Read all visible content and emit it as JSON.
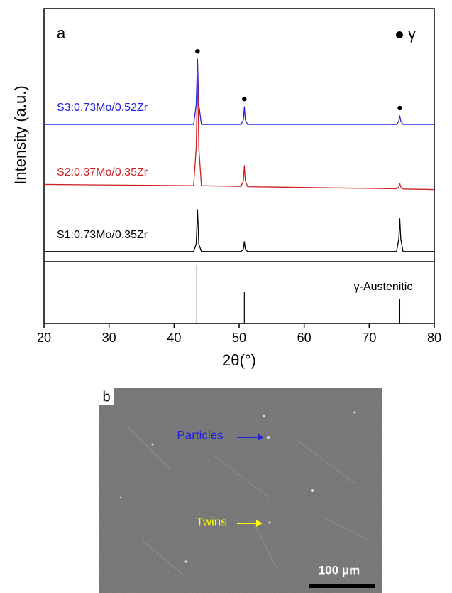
{
  "chart_data": {
    "type": "line",
    "panel_label": "a",
    "y_axis_label": "Intensity (a.u.)",
    "x_axis_label": "2θ(°)",
    "x": [
      20,
      43.0,
      43.4,
      43.6,
      43.8,
      44.2,
      50.3,
      50.65,
      50.8,
      50.95,
      51.3,
      74.2,
      74.55,
      74.7,
      74.85,
      75.2,
      80
    ],
    "xlim": [
      20,
      80
    ],
    "xticks": [
      20,
      30,
      40,
      50,
      60,
      70,
      80
    ],
    "ylim": [
      0,
      100
    ],
    "series": [
      {
        "name": "S3:0.73Mo/0.52Zr",
        "color": "#2222dd",
        "values": [
          54.2,
          54.2,
          62,
          80,
          62,
          54.2,
          54.2,
          56,
          61.2,
          56,
          54.2,
          54.2,
          55.5,
          57.6,
          55.5,
          54.2,
          54.2
        ]
      },
      {
        "name": "S2:0.37Mo/0.35Zr",
        "color": "#cc2222",
        "values": [
          30.5,
          30,
          45,
          75.3,
          45,
          30,
          29.7,
          32,
          37.9,
          32,
          29.6,
          28.8,
          29.5,
          30.9,
          29.5,
          28.7,
          28.5
        ]
      },
      {
        "name": "S1:0.73Mo/0.35Zr",
        "color": "#000000",
        "values": [
          4,
          4,
          7,
          20.5,
          7,
          4,
          4,
          5,
          7.9,
          5,
          4,
          4,
          9,
          16.9,
          9,
          4,
          4
        ]
      }
    ],
    "peak_markers": {
      "legend_label": "γ",
      "x": [
        43.6,
        50.8,
        74.7
      ]
    },
    "reference": {
      "name": "γ-Austenitic",
      "x": [
        43.5,
        50.8,
        74.7
      ],
      "values": [
        100,
        52,
        39
      ],
      "ylim": [
        0,
        100
      ]
    }
  },
  "image_panel": {
    "label": "b",
    "annotations": [
      "Particles",
      "Twins"
    ],
    "scale_bar": "100 μm"
  }
}
